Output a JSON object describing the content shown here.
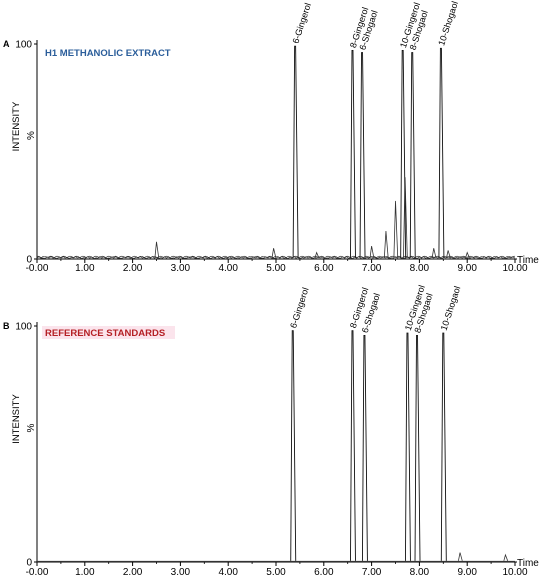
{
  "chart_data": [
    {
      "type": "line",
      "panel_letter": "A",
      "title": "H1 METHANOLIC EXTRACT",
      "title_color": "#2a5d9a",
      "title_bg": "",
      "ylabel": "INTENSITY",
      "y_unit": "%",
      "xlabel": "Time",
      "x_ticks": [
        "-0.00",
        "1.00",
        "2.00",
        "3.00",
        "4.00",
        "5.00",
        "6.00",
        "7.00",
        "8.00",
        "9.00",
        "10.00"
      ],
      "y_ticks": [
        "100",
        "0"
      ],
      "xlim": [
        0,
        10
      ],
      "ylim": [
        0,
        100
      ],
      "peaks": [
        {
          "label": "6-Gingerol",
          "x": 5.4,
          "y": 99
        },
        {
          "label": "8-Gingerol",
          "x": 6.6,
          "y": 97
        },
        {
          "label": "6-Shogaol",
          "x": 6.8,
          "y": 96
        },
        {
          "label": "10-Gingerol",
          "x": 7.65,
          "y": 97
        },
        {
          "label": "8-Shogaol",
          "x": 7.85,
          "y": 96
        },
        {
          "label": "10-Shogaol",
          "x": 8.45,
          "y": 98
        }
      ],
      "minor_peaks": [
        {
          "x": 2.5,
          "y": 8
        },
        {
          "x": 4.95,
          "y": 5
        },
        {
          "x": 5.85,
          "y": 3
        },
        {
          "x": 7.0,
          "y": 6
        },
        {
          "x": 7.3,
          "y": 13
        },
        {
          "x": 7.5,
          "y": 27
        },
        {
          "x": 7.7,
          "y": 38
        },
        {
          "x": 8.3,
          "y": 5
        },
        {
          "x": 8.6,
          "y": 4
        },
        {
          "x": 9.0,
          "y": 3
        }
      ]
    },
    {
      "type": "line",
      "panel_letter": "B",
      "title": "REFERENCE STANDARDS",
      "title_color": "#b52025",
      "title_bg": "#fbe4ec",
      "ylabel": "INTENSITY",
      "y_unit": "%",
      "xlabel": "Time",
      "x_ticks": [
        "-0.00",
        "1.00",
        "2.00",
        "3.00",
        "4.00",
        "5.00",
        "6.00",
        "7.00",
        "8.00",
        "9.00",
        "10.00"
      ],
      "y_ticks": [
        "100",
        "0"
      ],
      "xlim": [
        0,
        10
      ],
      "ylim": [
        0,
        100
      ],
      "peaks": [
        {
          "label": "6-Gingerol",
          "x": 5.35,
          "y": 98
        },
        {
          "label": "8-Gingerol",
          "x": 6.6,
          "y": 98
        },
        {
          "label": "6-Shogaol",
          "x": 6.85,
          "y": 96
        },
        {
          "label": "10-Gingerol",
          "x": 7.75,
          "y": 97
        },
        {
          "label": "8-Shogaol",
          "x": 7.95,
          "y": 96
        },
        {
          "label": "10-Shogaol",
          "x": 8.5,
          "y": 97
        }
      ],
      "minor_peaks": [
        {
          "x": 8.85,
          "y": 4
        },
        {
          "x": 9.8,
          "y": 3
        }
      ]
    }
  ]
}
